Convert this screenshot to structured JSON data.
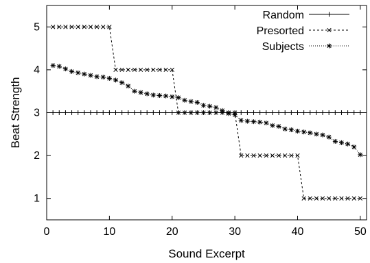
{
  "chart_data": {
    "type": "line",
    "xlabel": "Sound Excerpt",
    "ylabel": "Beat Strength",
    "xlim": [
      0,
      51
    ],
    "ylim": [
      0.5,
      5.5
    ],
    "xticks": [
      0,
      10,
      20,
      30,
      40,
      50
    ],
    "yticks": [
      1,
      2,
      3,
      4,
      5
    ],
    "grid": false,
    "legend_position": "top-right",
    "x": [
      1,
      2,
      3,
      4,
      5,
      6,
      7,
      8,
      9,
      10,
      11,
      12,
      13,
      14,
      15,
      16,
      17,
      18,
      19,
      20,
      21,
      22,
      23,
      24,
      25,
      26,
      27,
      28,
      29,
      30,
      31,
      32,
      33,
      34,
      35,
      36,
      37,
      38,
      39,
      40,
      41,
      42,
      43,
      44,
      45,
      46,
      47,
      48,
      49,
      50
    ],
    "series": [
      {
        "name": "Random",
        "marker": "plus",
        "dash": "solid",
        "values": [
          3,
          3,
          3,
          3,
          3,
          3,
          3,
          3,
          3,
          3,
          3,
          3,
          3,
          3,
          3,
          3,
          3,
          3,
          3,
          3,
          3,
          3,
          3,
          3,
          3,
          3,
          3,
          3,
          3,
          3,
          3,
          3,
          3,
          3,
          3,
          3,
          3,
          3,
          3,
          3,
          3,
          3,
          3,
          3,
          3,
          3,
          3,
          3,
          3,
          3
        ]
      },
      {
        "name": "Presorted",
        "marker": "x",
        "dash": "dashed",
        "values": [
          5,
          5,
          5,
          5,
          5,
          5,
          5,
          5,
          5,
          5,
          4,
          4,
          4,
          4,
          4,
          4,
          4,
          4,
          4,
          4,
          3,
          3,
          3,
          3,
          3,
          3,
          3,
          3,
          3,
          3,
          2,
          2,
          2,
          2,
          2,
          2,
          2,
          2,
          2,
          2,
          1,
          1,
          1,
          1,
          1,
          1,
          1,
          1,
          1,
          1
        ]
      },
      {
        "name": "Subjects",
        "marker": "star",
        "dash": "dotted",
        "values": [
          4.1,
          4.08,
          4.02,
          3.96,
          3.93,
          3.9,
          3.87,
          3.84,
          3.83,
          3.8,
          3.76,
          3.7,
          3.62,
          3.5,
          3.47,
          3.44,
          3.41,
          3.4,
          3.39,
          3.37,
          3.35,
          3.29,
          3.26,
          3.24,
          3.17,
          3.15,
          3.12,
          3.05,
          2.98,
          2.95,
          2.82,
          2.8,
          2.79,
          2.78,
          2.76,
          2.7,
          2.68,
          2.62,
          2.6,
          2.57,
          2.55,
          2.53,
          2.5,
          2.48,
          2.43,
          2.33,
          2.3,
          2.27,
          2.2,
          2.02
        ]
      }
    ]
  }
}
